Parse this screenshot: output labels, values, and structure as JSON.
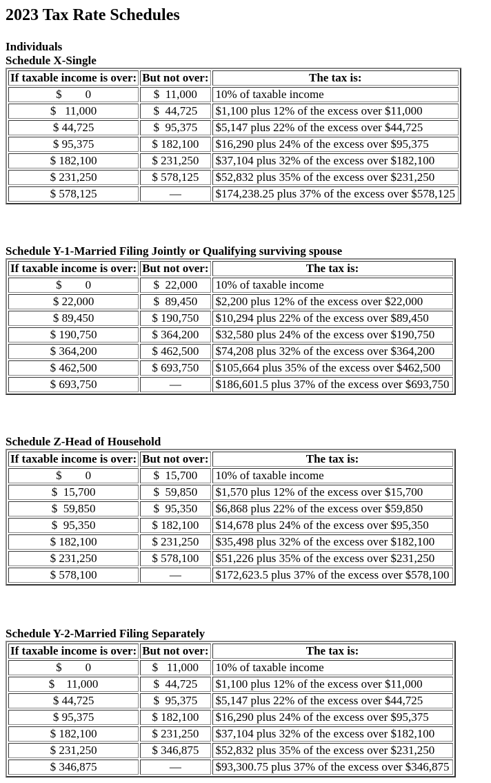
{
  "title": "2023 Tax Rate Schedules",
  "section": "Individuals",
  "headers": {
    "over": "If taxable income is over:",
    "not_over": "But not over:",
    "tax": "The tax is:"
  },
  "schedules": [
    {
      "name": "Schedule X-Single",
      "rows": [
        [
          "$        0",
          "$  11,000",
          "10% of taxable income"
        ],
        [
          "$   11,000",
          "$  44,725",
          "$1,100 plus 12% of the excess over $11,000"
        ],
        [
          "$ 44,725",
          "$  95,375",
          "$5,147 plus 22% of the excess over $44,725"
        ],
        [
          "$ 95,375",
          "$ 182,100",
          "$16,290 plus 24% of the excess over $95,375"
        ],
        [
          "$ 182,100",
          "$ 231,250",
          "$37,104 plus 32% of the excess over $182,100"
        ],
        [
          "$ 231,250",
          "$ 578,125",
          "$52,832 plus 35% of the excess over $231,250"
        ],
        [
          "$ 578,125",
          "—",
          "$174,238.25 plus 37% of the excess over $578,125"
        ]
      ]
    },
    {
      "name": "Schedule Y-1-Married Filing Jointly or Qualifying surviving spouse",
      "rows": [
        [
          "$        0",
          "$  22,000",
          "10% of taxable income"
        ],
        [
          "$ 22,000",
          "$  89,450",
          "$2,200 plus 12% of the excess over $22,000"
        ],
        [
          "$ 89,450",
          "$ 190,750",
          "$10,294 plus 22% of the excess over $89,450"
        ],
        [
          "$ 190,750",
          "$ 364,200",
          "$32,580 plus 24% of the excess over $190,750"
        ],
        [
          "$ 364,200",
          "$ 462,500",
          "$74,208 plus 32% of the excess over $364,200"
        ],
        [
          "$ 462,500",
          "$ 693,750",
          "$105,664 plus 35% of the excess over $462,500"
        ],
        [
          "$ 693,750",
          "—",
          "$186,601.5 plus 37% of the excess over $693,750"
        ]
      ]
    },
    {
      "name": "Schedule Z-Head of Household",
      "rows": [
        [
          "$        0",
          "$  15,700",
          "10% of taxable income"
        ],
        [
          "$  15,700",
          "$  59,850",
          "$1,570 plus 12% of the excess over $15,700"
        ],
        [
          "$  59,850",
          "$  95,350",
          "$6,868 plus 22% of the excess over $59,850"
        ],
        [
          "$  95,350",
          "$ 182,100",
          "$14,678 plus 24% of the excess over $95,350"
        ],
        [
          "$ 182,100",
          "$ 231,250",
          "$35,498 plus 32% of the excess over $182,100"
        ],
        [
          "$ 231,250",
          "$ 578,100",
          "$51,226 plus 35% of the excess over $231,250"
        ],
        [
          "$ 578,100",
          "—",
          "$172,623.5 plus 37% of the excess over $578,100"
        ]
      ]
    },
    {
      "name": "Schedule Y-2-Married Filing Separately",
      "rows": [
        [
          "$        0",
          "$   11,000",
          "10% of taxable income"
        ],
        [
          "$    11,000",
          "$  44,725",
          "$1,100 plus 12% of the excess over $11,000"
        ],
        [
          "$ 44,725",
          "$  95,375",
          "$5,147 plus 22% of the excess over $44,725"
        ],
        [
          "$ 95,375",
          "$ 182,100",
          "$16,290 plus 24% of the excess over $95,375"
        ],
        [
          "$ 182,100",
          "$ 231,250",
          "$37,104 plus 32% of the excess over $182,100"
        ],
        [
          "$ 231,250",
          "$ 346,875",
          "$52,832 plus 35% of the excess over $231,250"
        ],
        [
          "$ 346,875",
          "—",
          "$93,300.75 plus 37% of the excess over $346,875"
        ]
      ]
    }
  ]
}
